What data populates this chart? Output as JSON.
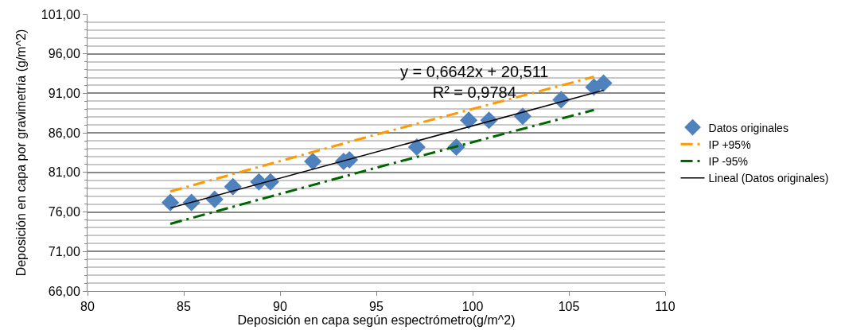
{
  "chart_data": {
    "type": "scatter",
    "xlabel": "Deposición en capa según espectrómetro(g/m^2)",
    "ylabel": "Deposición en capa por gravimetría (g/m^2)",
    "x": [
      84.3,
      85.4,
      86.6,
      87.55,
      88.9,
      89.5,
      91.7,
      93.3,
      93.6,
      97.1,
      99.15,
      99.8,
      100.85,
      102.6,
      104.6,
      106.3,
      106.8
    ],
    "series": [
      {
        "name": "Datos originales",
        "color": "#4f81bd",
        "marker": "diamond",
        "values": [
          77.2,
          77.2,
          77.6,
          79.2,
          79.8,
          79.8,
          82.4,
          82.4,
          82.6,
          84.2,
          84.2,
          87.6,
          87.6,
          88.1,
          90.2,
          91.8,
          92.3
        ]
      },
      {
        "name": "IP +95%",
        "type": "line",
        "color": "#ff9900",
        "line_style": "dashdot",
        "marker": "none",
        "x": [
          84.3,
          95,
          106.3
        ],
        "values": [
          78.6,
          85.8,
          93.1
        ]
      },
      {
        "name": "IP -95%",
        "type": "line",
        "color": "#006600",
        "line_style": "dashdot",
        "marker": "none",
        "x": [
          84.3,
          95,
          106.3
        ],
        "values": [
          74.5,
          81.6,
          88.9
        ]
      },
      {
        "name": "Lineal (Datos originales)",
        "type": "line",
        "color": "#000000",
        "line_style": "solid",
        "marker": "none",
        "x": [
          84.3,
          106.8
        ],
        "values": [
          76.5,
          91.4
        ]
      }
    ],
    "annotations": [
      "y = 0,6642x + 20,511\nR² = 0,9784"
    ],
    "xlim": [
      80,
      110
    ],
    "xticks": [
      80,
      85,
      90,
      95,
      100,
      105,
      110
    ],
    "ylim": [
      66,
      101
    ],
    "yticks": [
      {
        "value": 66,
        "label": "66,00"
      },
      {
        "value": 71,
        "label": "71,00"
      },
      {
        "value": 76,
        "label": "76,00"
      },
      {
        "value": 81,
        "label": "81,00"
      },
      {
        "value": 86,
        "label": "86,00"
      },
      {
        "value": 91,
        "label": "91,00"
      },
      {
        "value": 96,
        "label": "96,00"
      },
      {
        "value": 101,
        "label": "101,00"
      }
    ],
    "grid": "y",
    "legend": "right"
  }
}
